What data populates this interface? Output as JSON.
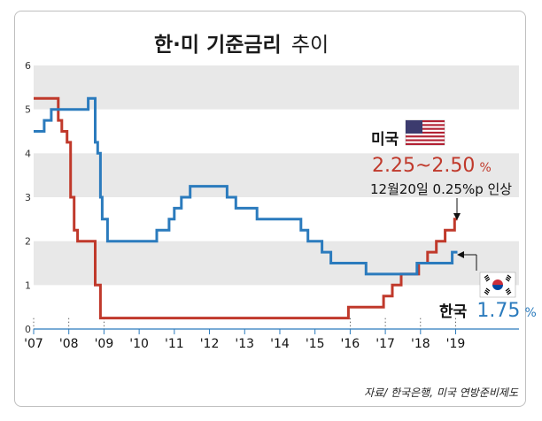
{
  "chart_data": {
    "type": "line",
    "title": "한·미 기준금리",
    "title_suffix": "추이",
    "ylim": [
      0,
      6
    ],
    "yticks": [
      "0",
      "1",
      "2",
      "3",
      "4",
      "5",
      "6"
    ],
    "xlim": [
      2007.0,
      2020.8
    ],
    "xticks": [
      {
        "x": 2007.0,
        "label": "'07"
      },
      {
        "x": 2008.0,
        "label": "'08"
      },
      {
        "x": 2009.0,
        "label": "'09"
      },
      {
        "x": 2010.0,
        "label": "'10"
      },
      {
        "x": 2011.0,
        "label": "'11"
      },
      {
        "x": 2012.0,
        "label": "'12"
      },
      {
        "x": 2013.0,
        "label": "'13"
      },
      {
        "x": 2014.0,
        "label": "'14"
      },
      {
        "x": 2015.0,
        "label": "'15"
      },
      {
        "x": 2016.0,
        "label": "'16"
      },
      {
        "x": 2017.0,
        "label": "'17"
      },
      {
        "x": 2018.0,
        "label": "'18"
      },
      {
        "x": 2019.0,
        "label": "'19"
      }
    ],
    "grid": "alternating horizontal bands",
    "series": [
      {
        "name": "미국",
        "color": "#c0392b",
        "points": [
          [
            2007.0,
            5.25
          ],
          [
            2007.7,
            5.25
          ],
          [
            2007.7,
            4.75
          ],
          [
            2007.8,
            4.75
          ],
          [
            2007.8,
            4.5
          ],
          [
            2007.95,
            4.5
          ],
          [
            2007.95,
            4.25
          ],
          [
            2008.05,
            4.25
          ],
          [
            2008.05,
            3.0
          ],
          [
            2008.15,
            3.0
          ],
          [
            2008.15,
            2.25
          ],
          [
            2008.25,
            2.25
          ],
          [
            2008.25,
            2.0
          ],
          [
            2008.75,
            2.0
          ],
          [
            2008.75,
            1.0
          ],
          [
            2008.9,
            1.0
          ],
          [
            2008.9,
            0.25
          ],
          [
            2015.95,
            0.25
          ],
          [
            2015.95,
            0.5
          ],
          [
            2016.95,
            0.5
          ],
          [
            2016.95,
            0.75
          ],
          [
            2017.2,
            0.75
          ],
          [
            2017.2,
            1.0
          ],
          [
            2017.45,
            1.0
          ],
          [
            2017.45,
            1.25
          ],
          [
            2017.95,
            1.25
          ],
          [
            2017.95,
            1.5
          ],
          [
            2018.2,
            1.5
          ],
          [
            2018.2,
            1.75
          ],
          [
            2018.45,
            1.75
          ],
          [
            2018.45,
            2.0
          ],
          [
            2018.7,
            2.0
          ],
          [
            2018.7,
            2.25
          ],
          [
            2018.97,
            2.25
          ],
          [
            2018.97,
            2.5
          ],
          [
            2019.05,
            2.5
          ]
        ]
      },
      {
        "name": "한국",
        "color": "#2b7bbd",
        "points": [
          [
            2007.0,
            4.5
          ],
          [
            2007.3,
            4.5
          ],
          [
            2007.3,
            4.75
          ],
          [
            2007.5,
            4.75
          ],
          [
            2007.5,
            5.0
          ],
          [
            2008.55,
            5.0
          ],
          [
            2008.55,
            5.25
          ],
          [
            2008.75,
            5.25
          ],
          [
            2008.75,
            4.25
          ],
          [
            2008.82,
            4.25
          ],
          [
            2008.82,
            4.0
          ],
          [
            2008.9,
            4.0
          ],
          [
            2008.9,
            3.0
          ],
          [
            2008.95,
            3.0
          ],
          [
            2008.95,
            2.5
          ],
          [
            2009.1,
            2.5
          ],
          [
            2009.1,
            2.0
          ],
          [
            2010.5,
            2.0
          ],
          [
            2010.5,
            2.25
          ],
          [
            2010.85,
            2.25
          ],
          [
            2010.85,
            2.5
          ],
          [
            2011.0,
            2.5
          ],
          [
            2011.0,
            2.75
          ],
          [
            2011.2,
            2.75
          ],
          [
            2011.2,
            3.0
          ],
          [
            2011.45,
            3.0
          ],
          [
            2011.45,
            3.25
          ],
          [
            2012.5,
            3.25
          ],
          [
            2012.5,
            3.0
          ],
          [
            2012.75,
            3.0
          ],
          [
            2012.75,
            2.75
          ],
          [
            2013.35,
            2.75
          ],
          [
            2013.35,
            2.5
          ],
          [
            2014.6,
            2.5
          ],
          [
            2014.6,
            2.25
          ],
          [
            2014.8,
            2.25
          ],
          [
            2014.8,
            2.0
          ],
          [
            2015.2,
            2.0
          ],
          [
            2015.2,
            1.75
          ],
          [
            2015.45,
            1.75
          ],
          [
            2015.45,
            1.5
          ],
          [
            2016.45,
            1.5
          ],
          [
            2016.45,
            1.25
          ],
          [
            2017.9,
            1.25
          ],
          [
            2017.9,
            1.5
          ],
          [
            2018.9,
            1.5
          ],
          [
            2018.9,
            1.75
          ],
          [
            2019.05,
            1.75
          ]
        ]
      }
    ],
    "annotations": {
      "us_name": "미국",
      "us_rate": "2.25~2.50",
      "us_rate_unit": "%",
      "us_note": "12월20일 0.25%p 인상",
      "kr_name": "한국",
      "kr_rate": "1.75",
      "kr_rate_unit": "%"
    },
    "source": "자료/ 한국은행, 미국 연방준비제도"
  },
  "flag_icons": [
    "us-flag-icon",
    "korea-flag-icon"
  ]
}
